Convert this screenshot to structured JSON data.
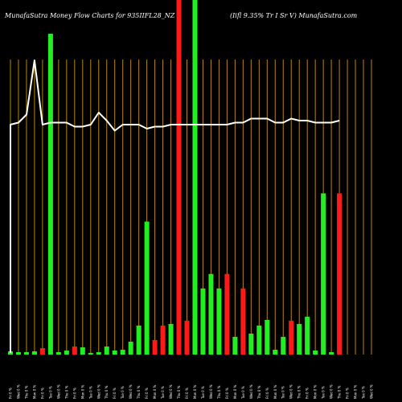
{
  "chart_data": {
    "type": "bar",
    "title": "MunafaSutra  Money Flow  Charts for 935IIFL28_NZ",
    "subtitle": "(Iifl 9.35% Tr I Sr V) MunafaSutra.com",
    "colors": {
      "background": "#000000",
      "grid": "#b8860b",
      "up": "#22ee22",
      "down": "#ff1a1a",
      "line": "#ffffff"
    },
    "categories": [
      "Fri 0 % ",
      "Wed 0 % ",
      "Thu 0 % ",
      "Mon 0 % ",
      "Fri 0 % ",
      "Tue 0 % ",
      "Wed 0 % ",
      "Thu 0 % ",
      "Fri 0 % ",
      "Mon 0 % ",
      "Tue 0 % ",
      "Wed 0 % ",
      "Thu 0 % ",
      "Fri 0 % ",
      "Tue 0 % ",
      "Wed 0 % ",
      "Thu 0 % ",
      "Fri 0 % ",
      "Mon 0 % ",
      "Tue 0 % ",
      "Wed 0 % ",
      "Thu 0 % ",
      "Fri 0 % ",
      "Mon 0 % ",
      "Tue 0 % ",
      "Wed 0 % ",
      "Thu 0 % ",
      "Fri 0 % ",
      "Mon 0 % ",
      "Tue 0 % ",
      "Wed 0 % ",
      "Thu 0 % ",
      "Fri 0 % ",
      "Mon 0 % ",
      "Tue 0 % ",
      "Wed 0 % ",
      "Thu 0 % ",
      "Fri 0 % ",
      "Mon 0 % ",
      "Tue 0 % ",
      "Wed 0 % ",
      "Thu 0 % ",
      "Fri 0 % ",
      "Mon 0 % ",
      "Tue 0 % ",
      "Wed 0 % "
    ],
    "bar_directions": [
      "up",
      "up",
      "up",
      "up",
      "down",
      "up",
      "up",
      "up",
      "down",
      "up",
      "up",
      "up",
      "up",
      "up",
      "up",
      "up",
      "up",
      "up",
      "down",
      "down",
      "up",
      "down",
      "down",
      "up",
      "up",
      "up",
      "up",
      "down",
      "up",
      "down",
      "up",
      "up",
      "up",
      "up",
      "up",
      "down",
      "up",
      "up",
      "up",
      "up",
      "up",
      "down",
      "up",
      "up",
      "up",
      "up"
    ],
    "money_flow": [
      4,
      3,
      3,
      4,
      8,
      398,
      3,
      5,
      10,
      9,
      2,
      3,
      10,
      5,
      6,
      16,
      36,
      165,
      18,
      36,
      38,
      520,
      42,
      460,
      82,
      100,
      82,
      100,
      22,
      82,
      26,
      36,
      43,
      6,
      22,
      42,
      38,
      47,
      5,
      200,
      3,
      200,
      0,
      0,
      0,
      0
    ],
    "price_line": [
      50,
      51,
      55,
      82,
      50,
      51,
      51,
      51,
      49,
      49,
      50,
      56,
      52,
      47,
      50,
      50,
      50,
      48,
      49,
      49,
      50,
      50,
      50,
      50,
      50,
      50,
      50,
      50,
      51,
      51,
      53,
      53,
      53,
      51,
      51,
      53,
      52,
      52,
      51,
      51,
      51,
      52,
      0,
      0,
      0,
      0
    ],
    "bar_ylim": [
      0,
      400
    ],
    "line_ylim": [
      0,
      100
    ],
    "grid": true,
    "legend": "none"
  }
}
